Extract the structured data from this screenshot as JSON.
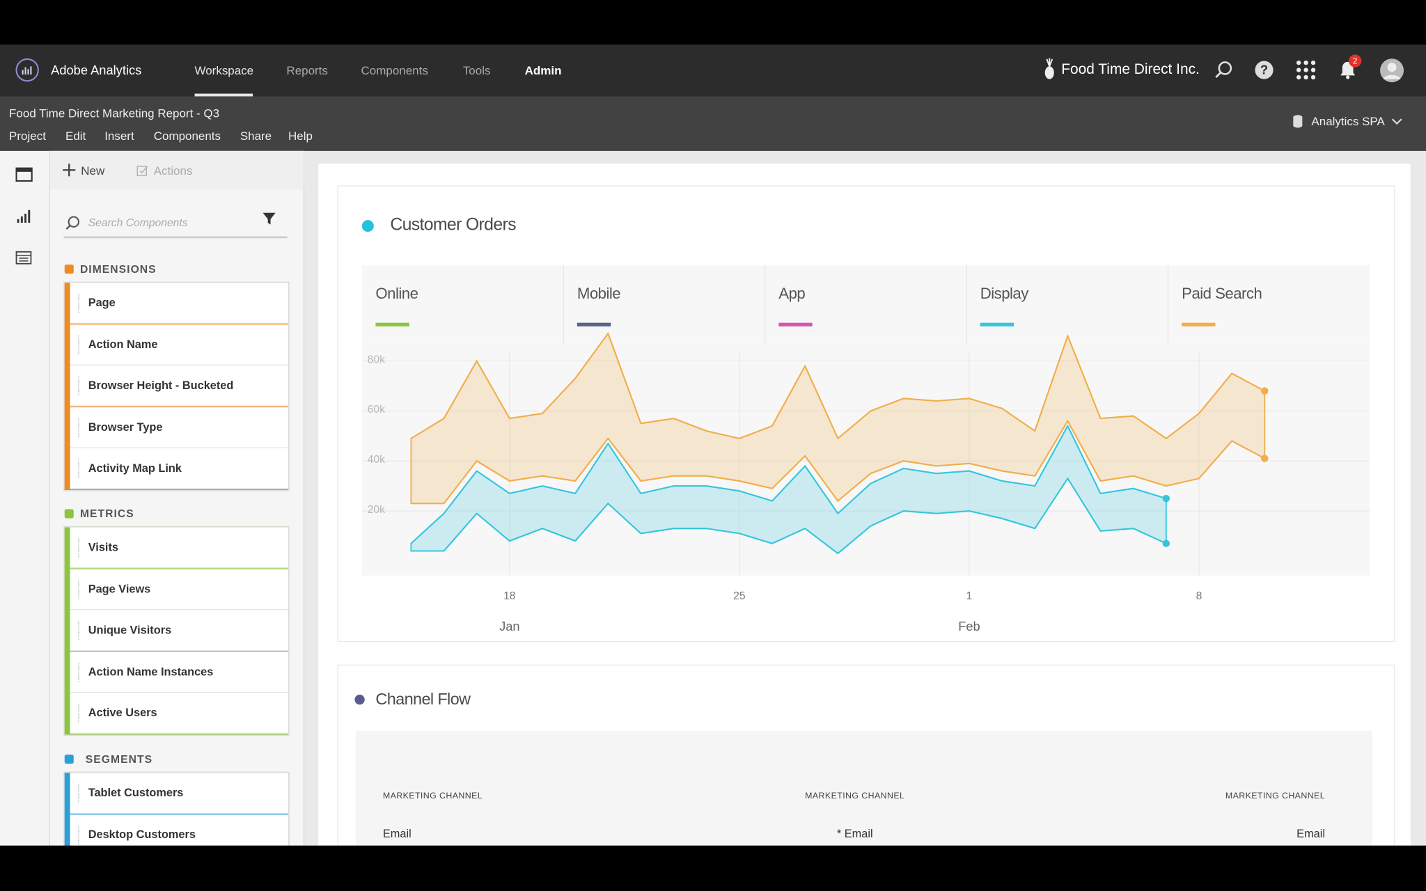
{
  "header": {
    "app_name": "Adobe Analytics",
    "nav": [
      "Workspace",
      "Reports",
      "Components",
      "Tools",
      "Admin"
    ],
    "company": "Food Time Direct Inc.",
    "notification_count": 2
  },
  "project": {
    "title": "Food Time Direct Marketing Report - Q3",
    "menu": [
      "Project",
      "Edit",
      "Insert",
      "Components",
      "Share",
      "Help"
    ],
    "report_suite": "Analytics SPA"
  },
  "sidebar": {
    "toolbar": [
      "New",
      "Actions"
    ],
    "search_placeholder": "Search Components",
    "sections": [
      {
        "title": "DIMENSIONS",
        "items": [
          "Page",
          "Action Name",
          "Browser Height - Bucketed",
          "Browser Type",
          "Activity Map Link"
        ]
      },
      {
        "title": "METRICS",
        "items": [
          "Visits",
          "Page Views",
          "Unique Visitors",
          "Action Name Instances",
          "Active Users"
        ]
      },
      {
        "title": "SEGMENTS",
        "items": [
          "Tablet Customers",
          "Desktop Customers"
        ]
      }
    ]
  },
  "chart_data": {
    "type": "area",
    "title": "Customer Orders",
    "categories": [
      "Jan 15",
      "Jan 16",
      "Jan 17",
      "Jan 18",
      "Jan 19",
      "Jan 20",
      "Jan 21",
      "Jan 22",
      "Jan 23",
      "Jan 24",
      "Jan 25",
      "Jan 26",
      "Jan 27",
      "Jan 28",
      "Jan 29",
      "Jan 30",
      "Jan 31",
      "Feb 1",
      "Feb 2",
      "Feb 3",
      "Feb 4",
      "Feb 5",
      "Feb 6",
      "Feb 7",
      "Feb 8",
      "Feb 9",
      "Feb 10"
    ],
    "series": [
      {
        "name": "Online",
        "color": "#8cc63f"
      },
      {
        "name": "Mobile",
        "color": "#5d6389"
      },
      {
        "name": "App",
        "color": "#d656b4"
      },
      {
        "name": "Display",
        "color": "#35c6de",
        "high": [
          7000,
          19000,
          36000,
          27000,
          30000,
          27000,
          47000,
          27000,
          30000,
          30000,
          28000,
          24000,
          38000,
          19000,
          31000,
          37000,
          35000,
          36000,
          32000,
          30000,
          54000,
          27000,
          29000,
          25000,
          null,
          null,
          null
        ],
        "low": [
          4000,
          4000,
          19000,
          8000,
          13000,
          8000,
          23000,
          11000,
          13000,
          13000,
          11000,
          7000,
          13000,
          3000,
          14000,
          20000,
          19000,
          20000,
          17000,
          13000,
          33000,
          12000,
          13000,
          7000,
          null,
          null,
          null
        ]
      },
      {
        "name": "Paid Search",
        "color": "#f1ae4a",
        "high": [
          49000,
          57000,
          80000,
          57000,
          59000,
          73000,
          91000,
          55000,
          57000,
          52000,
          49000,
          54000,
          78000,
          49000,
          60000,
          65000,
          64000,
          65000,
          61000,
          52000,
          90000,
          57000,
          58000,
          49000,
          59000,
          75000,
          68000
        ],
        "low": [
          23000,
          23000,
          40000,
          32000,
          34000,
          32000,
          49000,
          32000,
          34000,
          34000,
          32000,
          29000,
          42000,
          24000,
          35000,
          40000,
          38000,
          39000,
          36000,
          34000,
          56000,
          32000,
          34000,
          30000,
          33000,
          48000,
          41000
        ]
      }
    ],
    "ylim": [
      -5000,
      85000
    ],
    "yticks": [
      {
        "value": 20000,
        "label": "20k"
      },
      {
        "value": 40000,
        "label": "40k"
      },
      {
        "value": 60000,
        "label": "60k"
      },
      {
        "value": 80000,
        "label": "80k"
      }
    ],
    "xticks": [
      {
        "value": "Jan 18",
        "label": "18"
      },
      {
        "value": "Jan 25",
        "label": "25"
      },
      {
        "value": "Feb 1",
        "label": "1"
      },
      {
        "value": "Feb 8",
        "label": "8"
      }
    ],
    "xmonths": [
      {
        "value": "Jan 18",
        "label": "Jan"
      },
      {
        "value": "Feb 1",
        "label": "Feb"
      }
    ],
    "grid": true
  },
  "channel_flow": {
    "title": "Channel Flow",
    "columns": [
      "MARKETING CHANNEL",
      "MARKETING CHANNEL",
      "MARKETING CHANNEL"
    ],
    "rows": [
      [
        "Email",
        "* Email",
        "Email"
      ]
    ]
  }
}
